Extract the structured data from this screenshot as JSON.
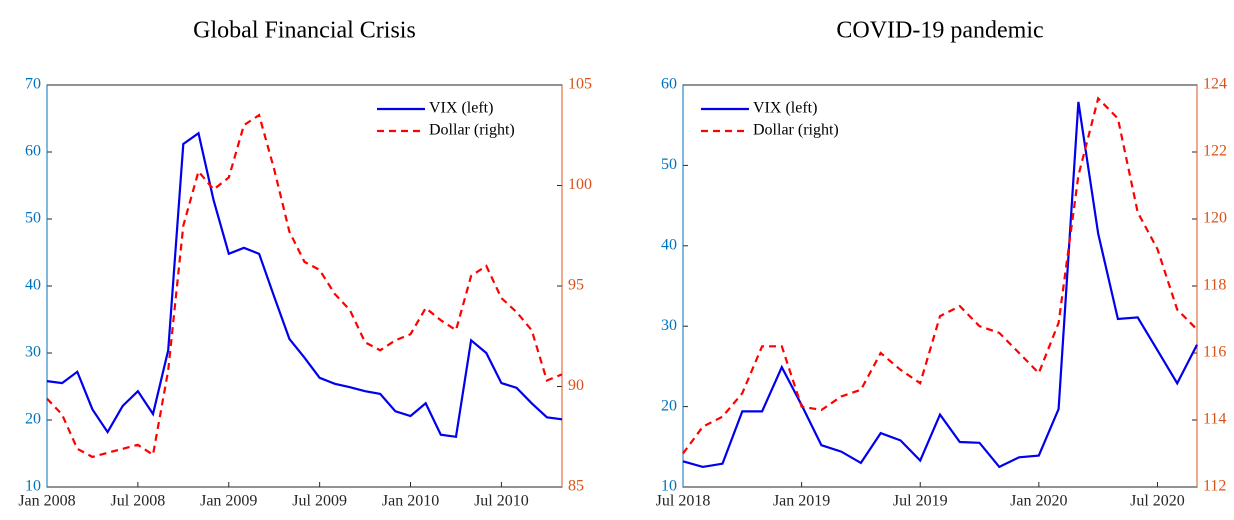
{
  "chart_data": [
    {
      "type": "line",
      "title": "Global Financial Crisis",
      "legend": "upper right",
      "x": [
        "2008-01",
        "2008-02",
        "2008-03",
        "2008-04",
        "2008-05",
        "2008-06",
        "2008-07",
        "2008-08",
        "2008-09",
        "2008-10",
        "2008-11",
        "2008-12",
        "2009-01",
        "2009-02",
        "2009-03",
        "2009-04",
        "2009-05",
        "2009-06",
        "2009-07",
        "2009-08",
        "2009-09",
        "2009-10",
        "2009-11",
        "2009-12",
        "2010-01",
        "2010-02",
        "2010-03",
        "2010-04",
        "2010-05",
        "2010-06",
        "2010-07",
        "2010-08",
        "2010-09",
        "2010-10",
        "2010-11"
      ],
      "xlim": [
        "2008-01",
        "2010-11"
      ],
      "xticks": [
        {
          "value": "2008-01",
          "label": "Jan 2008"
        },
        {
          "value": "2008-07",
          "label": "Jul 2008"
        },
        {
          "value": "2009-01",
          "label": "Jan 2009"
        },
        {
          "value": "2009-07",
          "label": "Jul 2009"
        },
        {
          "value": "2010-01",
          "label": "Jan 2010"
        },
        {
          "value": "2010-07",
          "label": "Jul 2010"
        }
      ],
      "ylim": [
        10,
        70
      ],
      "yticks": [
        10,
        20,
        30,
        40,
        50,
        60,
        70
      ],
      "ycolor": "#0072bd",
      "y2lim": [
        85,
        105
      ],
      "y2ticks": [
        85,
        90,
        95,
        100,
        105
      ],
      "y2color": "#d95319",
      "series": [
        {
          "name": "VIX (left)",
          "color": "#0000ee",
          "linestyle": "solid",
          "axis": "y",
          "values": [
            25.8,
            25.5,
            27.2,
            21.6,
            18.2,
            22.1,
            24.3,
            20.9,
            30.4,
            61.2,
            62.8,
            52.8,
            44.8,
            45.7,
            44.8,
            38.4,
            32.1,
            29.3,
            26.3,
            25.4,
            24.9,
            24.3,
            23.9,
            21.3,
            20.6,
            22.5,
            17.8,
            17.5,
            31.9,
            30.0,
            25.5,
            24.8,
            22.5,
            20.4,
            20.1
          ]
        },
        {
          "name": "Dollar (right)",
          "color": "#ff0000",
          "linestyle": "dashed",
          "axis": "y2",
          "values": [
            89.4,
            88.6,
            86.9,
            86.5,
            86.7,
            86.9,
            87.1,
            86.6,
            90.8,
            98.0,
            100.7,
            99.8,
            100.4,
            103.0,
            103.5,
            100.8,
            97.7,
            96.2,
            95.8,
            94.6,
            93.8,
            92.2,
            91.8,
            92.3,
            92.6,
            93.9,
            93.3,
            92.8,
            95.5,
            96.0,
            94.4,
            93.7,
            92.8,
            90.3,
            90.6
          ]
        }
      ]
    },
    {
      "type": "line",
      "title": "COVID-19 pandemic",
      "legend": "upper left",
      "x": [
        "2018-07",
        "2018-08",
        "2018-09",
        "2018-10",
        "2018-11",
        "2018-12",
        "2019-01",
        "2019-02",
        "2019-03",
        "2019-04",
        "2019-05",
        "2019-06",
        "2019-07",
        "2019-08",
        "2019-09",
        "2019-10",
        "2019-11",
        "2019-12",
        "2020-01",
        "2020-02",
        "2020-03",
        "2020-04",
        "2020-05",
        "2020-06",
        "2020-07",
        "2020-08",
        "2020-09"
      ],
      "xlim": [
        "2018-07",
        "2020-09"
      ],
      "xticks": [
        {
          "value": "2018-07",
          "label": "Jul 2018"
        },
        {
          "value": "2019-01",
          "label": "Jan 2019"
        },
        {
          "value": "2019-07",
          "label": "Jul 2019"
        },
        {
          "value": "2020-01",
          "label": "Jan 2020"
        },
        {
          "value": "2020-07",
          "label": "Jul 2020"
        }
      ],
      "ylim": [
        10,
        60
      ],
      "yticks": [
        10,
        20,
        30,
        40,
        50,
        60
      ],
      "ycolor": "#0072bd",
      "y2lim": [
        112,
        124
      ],
      "y2ticks": [
        112,
        114,
        116,
        118,
        120,
        122,
        124
      ],
      "y2color": "#d95319",
      "series": [
        {
          "name": "VIX (left)",
          "color": "#0000ee",
          "linestyle": "solid",
          "axis": "y",
          "values": [
            13.2,
            12.5,
            12.9,
            19.4,
            19.4,
            24.9,
            20.2,
            15.2,
            14.4,
            13.0,
            16.7,
            15.8,
            13.3,
            19.0,
            15.6,
            15.5,
            12.5,
            13.7,
            13.9,
            19.7,
            57.9,
            41.5,
            30.9,
            31.1,
            27.0,
            22.9,
            27.7
          ]
        },
        {
          "name": "Dollar (right)",
          "color": "#ff0000",
          "linestyle": "dashed",
          "axis": "y2",
          "values": [
            113.0,
            113.8,
            114.1,
            114.8,
            116.2,
            116.2,
            114.4,
            114.3,
            114.7,
            114.9,
            116.0,
            115.5,
            115.1,
            117.1,
            117.4,
            116.8,
            116.6,
            116.0,
            115.4,
            116.9,
            121.3,
            123.6,
            123.0,
            120.2,
            119.1,
            117.3,
            116.7
          ]
        }
      ]
    }
  ]
}
